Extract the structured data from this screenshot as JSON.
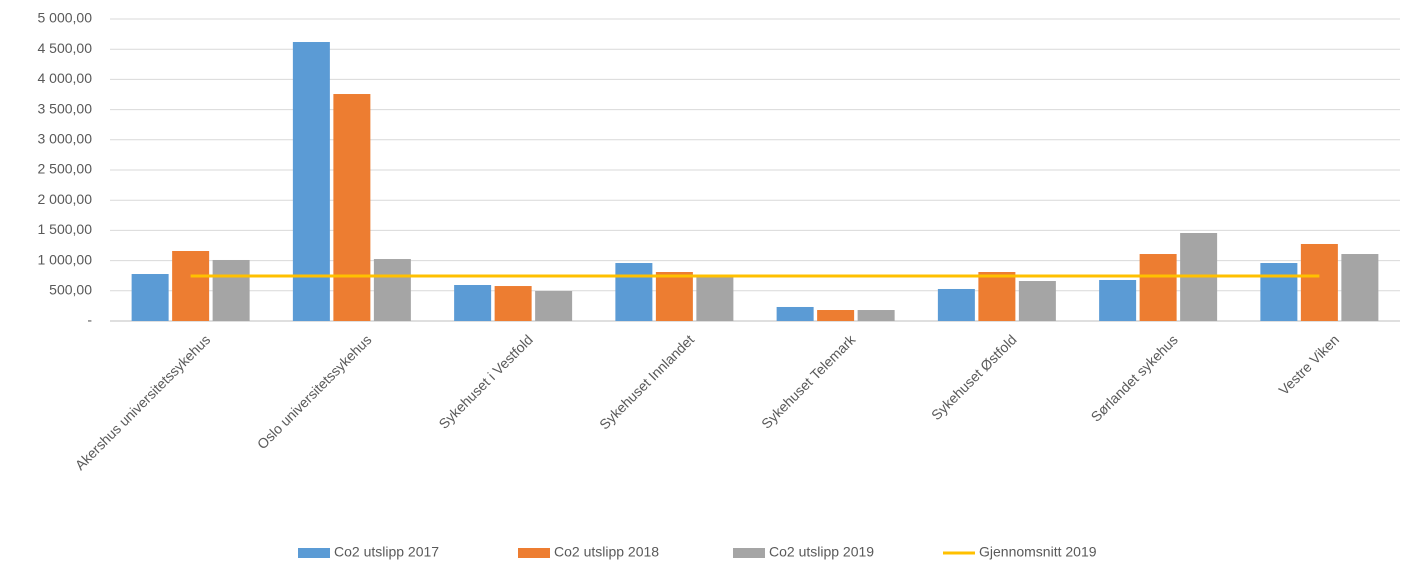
{
  "chart_data": {
    "type": "bar",
    "categories": [
      "Akershus universitetssykehus",
      "Oslo universitetssykehus",
      "Sykehuset i Vestfold",
      "Sykehuset Innlandet",
      "Sykehuset Telemark",
      "Sykehuset Østfold",
      "Sørlandet sykehus",
      "Vestre Viken"
    ],
    "series": [
      {
        "name": "Co2 utslipp 2017",
        "color": "#5b9bd5",
        "type": "bar",
        "values": [
          778,
          4619,
          596,
          960,
          232,
          530,
          679,
          960
        ]
      },
      {
        "name": "Co2 utslipp  2018",
        "color": "#ed7d31",
        "type": "bar",
        "values": [
          1159,
          3758,
          579,
          811,
          182,
          811,
          1109,
          1275
        ]
      },
      {
        "name": "Co2 utslipp 2019",
        "color": "#a5a5a5",
        "type": "bar",
        "values": [
          1010,
          1026,
          497,
          728,
          182,
          662,
          1457,
          1109
        ]
      },
      {
        "name": "Gjennomsnitt 2019",
        "color": "#ffc000",
        "type": "line",
        "values": [
          745,
          745,
          745,
          745,
          745,
          745,
          745,
          745
        ]
      }
    ],
    "ylim": [
      0,
      5000
    ],
    "yticks": [
      {
        "value": 0,
        "label": "-"
      },
      {
        "value": 500,
        "label": "500,00"
      },
      {
        "value": 1000,
        "label": "1 000,00"
      },
      {
        "value": 1500,
        "label": "1 500,00"
      },
      {
        "value": 2000,
        "label": "2 000,00"
      },
      {
        "value": 2500,
        "label": "2 500,00"
      },
      {
        "value": 3000,
        "label": "3 000,00"
      },
      {
        "value": 3500,
        "label": "3 500,00"
      },
      {
        "value": 4000,
        "label": "4 000,00"
      },
      {
        "value": 4500,
        "label": "4 500,00"
      },
      {
        "value": 5000,
        "label": "5 000,00"
      }
    ],
    "grid": true,
    "legend": "bottom"
  }
}
